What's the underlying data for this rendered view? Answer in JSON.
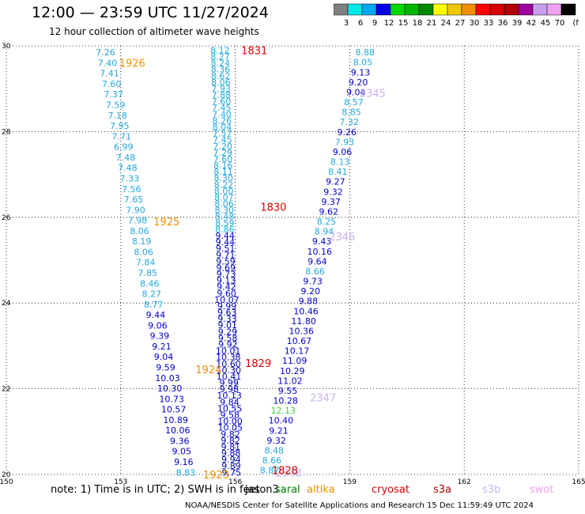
{
  "header": {
    "title": "12:00 — 23:59 UTC 11/27/2024",
    "subtitle": "12 hour collection of altimeter wave heights"
  },
  "colorbar": {
    "labels": [
      "3",
      "6",
      "9",
      "12",
      "15",
      "18",
      "21",
      "24",
      "27",
      "30",
      "33",
      "36",
      "39",
      "42",
      "45",
      "70",
      "(ft)"
    ],
    "colors": [
      "#808080",
      "#00e8e8",
      "#00a8f0",
      "#0000e8",
      "#00d800",
      "#00b400",
      "#008800",
      "#ffff00",
      "#f0c800",
      "#f09000",
      "#ff0000",
      "#d80000",
      "#b00000",
      "#a000a0",
      "#c8a0f0",
      "#f0a0f0",
      "#000000"
    ]
  },
  "footer": {
    "note": "note:  1) Time is in UTC;  2) SWH is in feet",
    "credit": "NOAA/NESDIS Center for Satellite Applications and Research    15 Dec 11:59:49 UTC 2024",
    "satellites": [
      {
        "name": "jason3",
        "color": "#000000"
      },
      {
        "name": "saral",
        "color": "#008000"
      },
      {
        "name": "altika",
        "color": "#f09000"
      },
      {
        "name": "cryosat",
        "color": "#e00000"
      },
      {
        "name": "s3a",
        "color": "#b00000"
      },
      {
        "name": "s3b",
        "color": "#c8b4f0"
      },
      {
        "name": "swot",
        "color": "#f0a0f0"
      }
    ]
  },
  "chart_data": {
    "type": "scatter",
    "xlim": [
      150,
      165
    ],
    "ylim": [
      20,
      30
    ],
    "xticks": [
      "150",
      "153",
      "156",
      "159",
      "162",
      "165"
    ],
    "yticks": [
      "30",
      "28",
      "26",
      "24",
      "22",
      "20"
    ],
    "grid": true,
    "time_labels": [
      {
        "text": "1926",
        "x": 153.3,
        "y": 29.6,
        "color": "#f09000"
      },
      {
        "text": "1831",
        "x": 156.5,
        "y": 29.9,
        "color": "#e00000"
      },
      {
        "text": "2345",
        "x": 159.6,
        "y": 28.9,
        "color": "#c8b4f0"
      },
      {
        "text": "1925",
        "x": 154.2,
        "y": 25.9,
        "color": "#f09000"
      },
      {
        "text": "1830",
        "x": 157.0,
        "y": 26.25,
        "color": "#e00000"
      },
      {
        "text": "2346",
        "x": 158.8,
        "y": 25.55,
        "color": "#c8b4f0"
      },
      {
        "text": "1924",
        "x": 155.3,
        "y": 22.45,
        "color": "#f09000"
      },
      {
        "text": "1829",
        "x": 156.6,
        "y": 22.6,
        "color": "#e00000"
      },
      {
        "text": "2347",
        "x": 158.3,
        "y": 21.8,
        "color": "#c8b4f0"
      },
      {
        "text": "1923",
        "x": 155.5,
        "y": 20.0,
        "color": "#f09000"
      },
      {
        "text": "2348",
        "x": 157.4,
        "y": 20.05,
        "color": "#c8b4f0"
      },
      {
        "text": "1828",
        "x": 157.3,
        "y": 20.1,
        "color": "#e00000"
      }
    ],
    "tracks": [
      {
        "name": "altika-west",
        "x_start": 152.6,
        "y_start": 29.85,
        "x_end": 154.7,
        "y_end": 20.05,
        "values": [
          "7.26",
          "7.40",
          "7.41",
          "7.60",
          "7.37",
          "7.59",
          "7.18",
          "7.95",
          "7.71",
          "6.99",
          "7.48",
          "7.48",
          "7.33",
          "7.56",
          "7.65",
          "7.90",
          "7.98",
          "8.06",
          "8.19",
          "8.06",
          "7.84",
          "7.85",
          "8.46",
          "8.27",
          "8.77",
          "9.44",
          "9.06",
          "9.39",
          "9.21",
          "9.04",
          "9.59",
          "10.03",
          "10.30",
          "10.73",
          "10.57",
          "10.89",
          "10.06",
          "9.36",
          "9.05",
          "9.16",
          "8.83"
        ]
      },
      {
        "name": "cryosat-middle",
        "x_start": 155.6,
        "y_start": 29.9,
        "x_end": 155.9,
        "y_end": 20.05,
        "values": [
          "8.12",
          "8.27",
          "8.24",
          "8.36",
          "8.62",
          "8.06",
          "7.93",
          "7.88",
          "7.60",
          "7.45",
          "7.40",
          "8.26",
          "8.04",
          "7.57",
          "7.45",
          "7.20",
          "7.29",
          "7.60",
          "8.16",
          "8.11",
          "8.30",
          "8.22",
          "8.00",
          "8.07",
          "8.06",
          "8.30",
          "8.48",
          "8.59",
          "8.86",
          "9.44",
          "9.44",
          "9.51",
          "9.71",
          "9.59",
          "9.69",
          "9.73",
          "9.13",
          "9.42",
          "9.60",
          "10.07",
          "9.99",
          "9.63",
          "9.33",
          "9.01",
          "9.29",
          "9.58",
          "9.92",
          "10.01",
          "10.38",
          "10.60",
          "10.30",
          "10.41",
          "9.99",
          "9.98",
          "10.13",
          "9.84",
          "10.55",
          "9.58",
          "10.00",
          "10.05",
          "9.82",
          "9.82",
          "9.81",
          "9.88",
          "9.94",
          "9.89",
          "9.75"
        ]
      },
      {
        "name": "s3b-east",
        "x_start": 159.4,
        "y_start": 29.85,
        "x_end": 156.9,
        "y_end": 20.1,
        "values": [
          "8.88",
          "8.05",
          "9.13",
          "9.20",
          "9.04",
          "8.57",
          "8.85",
          "7.32",
          "9.26",
          "7.93",
          "9.06",
          "8.13",
          "8.41",
          "9.27",
          "9.32",
          "9.37",
          "9.62",
          "8.25",
          "8.94",
          "9.43",
          "10.16",
          "9.64",
          "8.66",
          "9.73",
          "9.20",
          "9.88",
          "10.46",
          "11.80",
          "10.36",
          "10.67",
          "10.17",
          "11.09",
          "10.29",
          "11.02",
          "9.55",
          "10.28",
          "12.13",
          "10.40",
          "9.21",
          "9.32",
          "8.48",
          "8.66",
          "8.87"
        ]
      }
    ]
  }
}
